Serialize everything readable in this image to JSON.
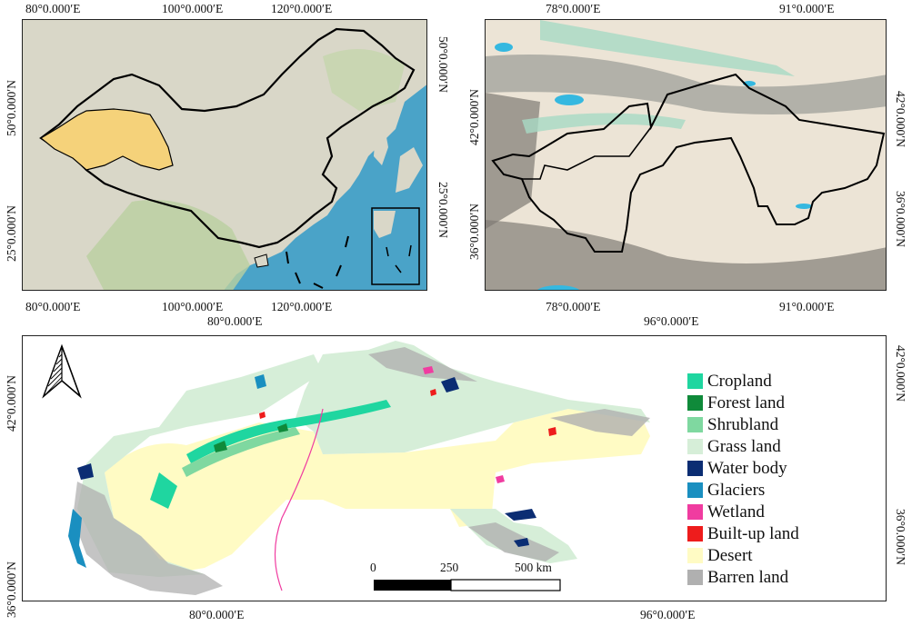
{
  "panel_a": {
    "top_ticks": [
      "80°0.000′E",
      "100°0.000′E",
      "120°0.000′E"
    ],
    "bottom_ticks": [
      "80°0.000′E",
      "100°0.000′E",
      "120°0.000′E"
    ],
    "left_ticks": [
      "50°0.000′N",
      "25°0.000′N"
    ],
    "right_ticks": [
      "50°0.000′N",
      "25°0.000′N"
    ],
    "colors": {
      "ocean": "#4aa3c8",
      "land": "#d9d7c8",
      "study_area": "#f5d27a",
      "boundary": "#000000"
    }
  },
  "panel_b": {
    "top_ticks": [
      "78°0.000′E",
      "91°0.000′E"
    ],
    "bottom_ticks": [
      "78°0.000′E",
      "91°0.000′E"
    ],
    "left_ticks": [
      "42°0.000′N",
      "36°0.000′N"
    ],
    "right_ticks": [
      "42°0.000′N",
      "36°0.000′N"
    ],
    "colors": {
      "desert": "#ece4d6",
      "mountain": "#8f8a82",
      "veg": "#a8d9c4",
      "water": "#35b8e0"
    }
  },
  "panel_c": {
    "top_ticks": [
      "80°0.000′E",
      "96°0.000′E"
    ],
    "bottom_ticks": [
      "80°0.000′E",
      "96°0.000′E"
    ],
    "left_ticks": [
      "42°0.000′N",
      "36°0.000′N"
    ],
    "right_ticks": [
      "42°0.000′N",
      "36°0.000′N"
    ],
    "scalebar": {
      "labels": [
        "0",
        "250",
        "500 km"
      ]
    },
    "legend": [
      {
        "label": "Cropland",
        "color": "#1fd6a0"
      },
      {
        "label": "Forest land",
        "color": "#0f8a3a"
      },
      {
        "label": "Shrubland",
        "color": "#7fd8a0"
      },
      {
        "label": "Grass land",
        "color": "#d6eed8"
      },
      {
        "label": "Water body",
        "color": "#0b2d73"
      },
      {
        "label": "Glaciers",
        "color": "#1a8fc0"
      },
      {
        "label": "Wetland",
        "color": "#f03ca0"
      },
      {
        "label": "Built-up land",
        "color": "#ee1c1c"
      },
      {
        "label": "Desert",
        "color": "#fffbc4"
      },
      {
        "label": "Barren land",
        "color": "#b0b0b0"
      }
    ]
  }
}
